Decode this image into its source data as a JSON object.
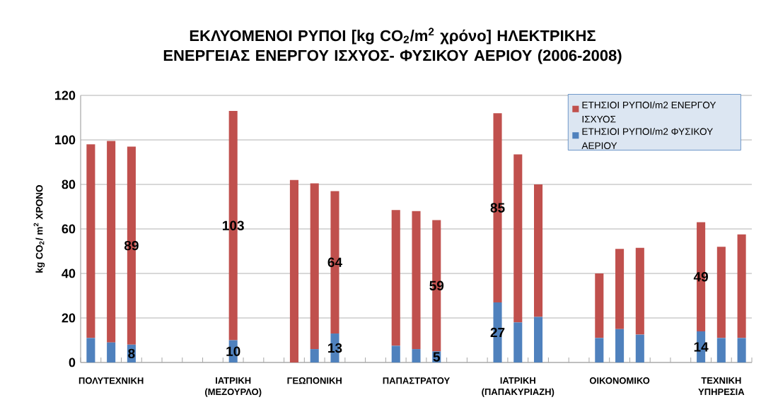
{
  "chart_data": {
    "type": "bar",
    "stacked": true,
    "title": "ΕΚΛΥΟΜΕΝΟΙ ΡΥΠΟΙ [kg CO$_{2}$/m$^{2}$ χρόνο] ΗΛΕΚΤΡΙΚΗΣ ΕΝΕΡΓΕΙΑΣ ΕΝΕΡΓΟΥ ΙΣΧΥΟΣ- ΦΥΣΙΚΟΥ ΑΕΡΙΟΥ (2006-2008)",
    "ylabel": "kg CO$_{2}$/ m$^{2}$  ΧΡΟΝΟ",
    "categories": [
      null,
      "ΠΟΛΥΤΕΧΝΙΚΗ",
      null,
      null,
      null,
      null,
      null,
      "ΙΑΤΡΙΚΗ (ΜΕΖΟΥΡΛΟ)",
      null,
      null,
      null,
      "ΓΕΩΠΟΝΙΚΗ",
      null,
      null,
      null,
      null,
      "ΠΑΠΑΣΤΡΑΤΟΥ",
      null,
      null,
      null,
      null,
      "ΙΑΤΡΙΚΗ (ΠΑΠΑΚΥΡΙΑΖΗ)",
      null,
      null,
      null,
      null,
      "ΟΙΚΟΝΟΜΙΚΟ",
      null,
      null,
      null,
      null,
      "ΤΕΧΝΙΚΗ ΥΠΗΡΕΣΙΑ",
      null
    ],
    "series": [
      {
        "name": "ΕΤΗΣΙΟΙ ΡΥΠΟΙ/m2 ΦΥΣΙΚΟΥ ΑΕΡΙΟΥ",
        "color": "#4f81bd",
        "values": [
          11,
          9,
          8,
          null,
          null,
          null,
          null,
          10,
          null,
          null,
          0,
          6,
          13,
          null,
          null,
          7.5,
          6,
          5,
          null,
          null,
          27,
          18,
          20.5,
          null,
          null,
          11,
          15,
          12.5,
          null,
          null,
          14,
          11,
          11
        ],
        "value_labels": [
          null,
          null,
          "8",
          null,
          null,
          null,
          null,
          "10",
          null,
          null,
          null,
          null,
          "13",
          null,
          null,
          null,
          null,
          "5",
          null,
          null,
          "27",
          null,
          null,
          null,
          null,
          null,
          null,
          null,
          null,
          null,
          "14",
          null,
          null
        ]
      },
      {
        "name": "ΕΤΗΣΙΟΙ ΡΥΠΟΙ/m2 ΕΝΕΡΓΟΥ ΙΣΧΥΟΣ",
        "color": "#c0504d",
        "values": [
          87,
          90.5,
          89,
          null,
          null,
          null,
          null,
          103,
          null,
          null,
          82,
          74.5,
          64,
          null,
          null,
          61,
          62,
          59,
          null,
          null,
          85,
          75.5,
          59.5,
          null,
          null,
          29,
          36,
          39,
          null,
          null,
          49,
          41,
          46.5
        ],
        "value_labels": [
          null,
          null,
          "89",
          null,
          null,
          null,
          null,
          "103",
          null,
          null,
          null,
          null,
          "64",
          null,
          null,
          null,
          null,
          "59",
          null,
          null,
          "85",
          null,
          null,
          null,
          null,
          null,
          null,
          null,
          null,
          null,
          "49",
          null,
          null
        ]
      }
    ],
    "ylim": [
      0,
      120
    ],
    "yticks": [
      0,
      20,
      40,
      60,
      80,
      100,
      120
    ],
    "grid": "y",
    "legend": "top right"
  }
}
